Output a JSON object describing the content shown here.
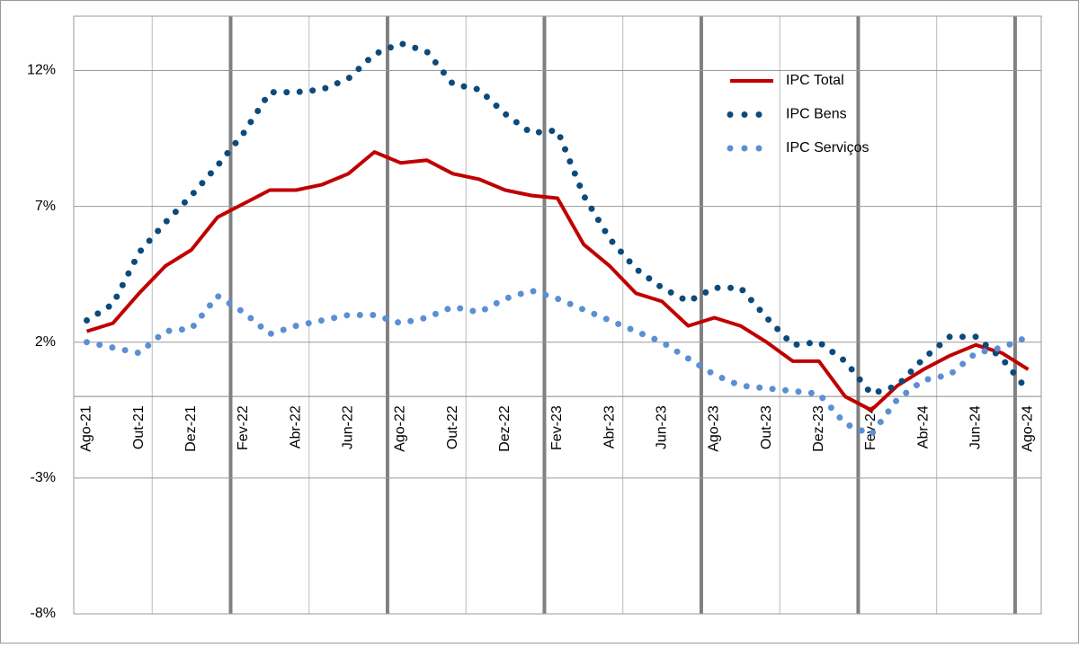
{
  "chart_data": {
    "type": "line",
    "categories": [
      "Ago-21",
      null,
      "Out-21",
      null,
      "Dez-21",
      null,
      "Fev-22",
      null,
      "Abr-22",
      null,
      "Jun-22",
      null,
      "Ago-22",
      null,
      "Out-22",
      null,
      "Dez-22",
      null,
      "Fev-23",
      null,
      "Abr-23",
      null,
      "Jun-23",
      null,
      "Ago-23",
      null,
      "Out-23",
      null,
      "Dez-23",
      null,
      "Fev-24",
      null,
      "Abr-24",
      null,
      "Jun-24",
      null,
      "Ago-24"
    ],
    "series": [
      {
        "name": "IPC Total",
        "color": "#c00000",
        "style": "solid",
        "values": [
          2.4,
          2.7,
          3.8,
          4.8,
          5.4,
          6.6,
          7.1,
          7.6,
          7.6,
          7.8,
          8.2,
          9.0,
          8.6,
          8.7,
          8.2,
          8.0,
          7.6,
          7.4,
          7.3,
          5.6,
          4.8,
          3.8,
          3.5,
          2.6,
          2.9,
          2.6,
          2.0,
          1.3,
          1.3,
          0.0,
          -0.5,
          0.4,
          1.0,
          1.5,
          1.9,
          1.6,
          1.0
        ]
      },
      {
        "name": "IPC Bens",
        "color": "#0d4a7a",
        "style": "dotted",
        "values": [
          2.8,
          3.4,
          5.3,
          6.4,
          7.4,
          8.5,
          9.7,
          11.2,
          11.2,
          11.3,
          11.7,
          12.6,
          13.0,
          12.7,
          11.5,
          11.3,
          10.4,
          9.7,
          9.8,
          7.4,
          5.8,
          4.7,
          4.0,
          3.5,
          4.0,
          4.0,
          2.9,
          1.9,
          2.0,
          1.3,
          0.1,
          0.4,
          1.4,
          2.2,
          2.2,
          1.4,
          0.2
        ]
      },
      {
        "name": "IPC Serviços",
        "color": "#5b8fd4",
        "style": "dotted",
        "values": [
          2.0,
          1.8,
          1.6,
          2.4,
          2.5,
          3.7,
          3.1,
          2.3,
          2.6,
          2.8,
          3.0,
          3.0,
          2.7,
          2.9,
          3.3,
          3.1,
          3.6,
          3.9,
          3.6,
          3.2,
          2.8,
          2.4,
          2.0,
          1.4,
          0.8,
          0.4,
          0.3,
          0.2,
          0.1,
          -1.0,
          -1.4,
          -0.1,
          0.6,
          0.8,
          1.6,
          1.8,
          2.2
        ]
      }
    ],
    "ylim": [
      -8,
      14
    ],
    "yticks": [
      {
        "value": -8,
        "label": "-8%"
      },
      {
        "value": -3,
        "label": "-3%"
      },
      {
        "value": 2,
        "label": "2%"
      },
      {
        "value": 7,
        "label": "7%"
      },
      {
        "value": 12,
        "label": "12%"
      }
    ],
    "grid": true,
    "legend": "upper right"
  }
}
